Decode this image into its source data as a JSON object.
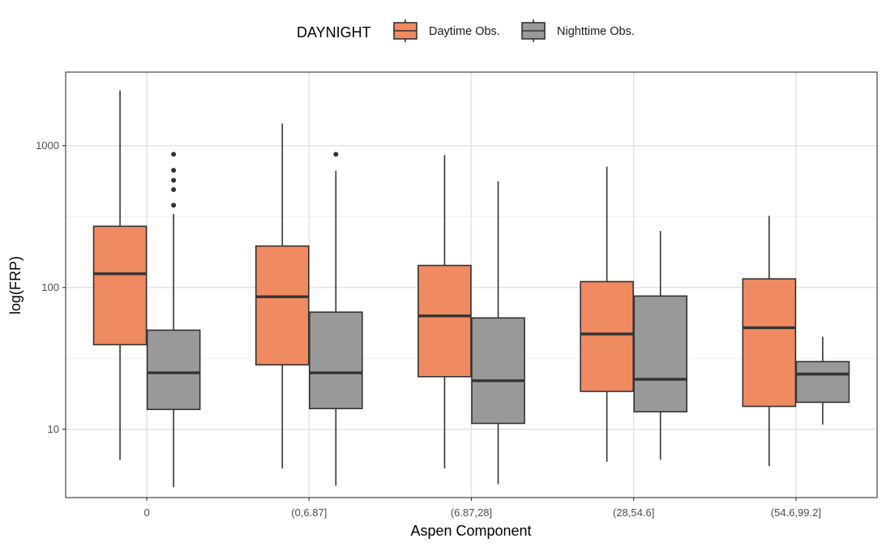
{
  "chart_data": {
    "type": "boxplot",
    "xlabel": "Aspen Component",
    "ylabel": "log(FRP)",
    "yscale": "log10",
    "ylim": [
      3.3,
      3300
    ],
    "yticks": [
      10,
      100,
      1000
    ],
    "ytick_labels": [
      "10",
      "100",
      "1000"
    ],
    "categories": [
      "0",
      "(0,6.87]",
      "(6.87,28]",
      "(28,54.6]",
      "(54.6,99.2]"
    ],
    "legend": {
      "title": "DAYNIGHT",
      "position": "top",
      "entries": [
        "Daytime Obs.",
        "Nighttime Obs."
      ]
    },
    "grid": true,
    "series": [
      {
        "name": "Daytime Obs.",
        "color": "#F08A61",
        "boxes": [
          {
            "category": "0",
            "whisker_low": 6.1,
            "q1": 39.5,
            "median": 125,
            "q3": 270,
            "whisker_high": 2450,
            "outliers": []
          },
          {
            "category": "(0,6.87]",
            "whisker_low": 5.3,
            "q1": 28.5,
            "median": 86,
            "q3": 196,
            "whisker_high": 1430,
            "outliers": []
          },
          {
            "category": "(6.87,28]",
            "whisker_low": 5.3,
            "q1": 23.5,
            "median": 63,
            "q3": 143,
            "whisker_high": 860,
            "outliers": []
          },
          {
            "category": "(28,54.6]",
            "whisker_low": 5.9,
            "q1": 18.5,
            "median": 47,
            "q3": 110,
            "whisker_high": 710,
            "outliers": []
          },
          {
            "category": "(54.6,99.2]",
            "whisker_low": 5.5,
            "q1": 14.5,
            "median": 52,
            "q3": 115,
            "whisker_high": 320,
            "outliers": []
          }
        ]
      },
      {
        "name": "Nighttime Obs.",
        "color": "#999999",
        "boxes": [
          {
            "category": "0",
            "whisker_low": 3.9,
            "q1": 13.8,
            "median": 25,
            "q3": 50,
            "whisker_high": 330,
            "outliers": [
              380,
              490,
              570,
              670,
              870
            ]
          },
          {
            "category": "(0,6.87]",
            "whisker_low": 4.0,
            "q1": 14.0,
            "median": 25,
            "q3": 67,
            "whisker_high": 665,
            "outliers": [
              870
            ]
          },
          {
            "category": "(6.87,28]",
            "whisker_low": 4.1,
            "q1": 11.0,
            "median": 22,
            "q3": 61,
            "whisker_high": 560,
            "outliers": []
          },
          {
            "category": "(28,54.6]",
            "whisker_low": 6.1,
            "q1": 13.3,
            "median": 22.5,
            "q3": 87,
            "whisker_high": 250,
            "outliers": []
          },
          {
            "category": "(54.6,99.2]",
            "whisker_low": 10.8,
            "q1": 15.5,
            "median": 24.5,
            "q3": 30,
            "whisker_high": 45,
            "outliers": []
          }
        ]
      }
    ]
  }
}
